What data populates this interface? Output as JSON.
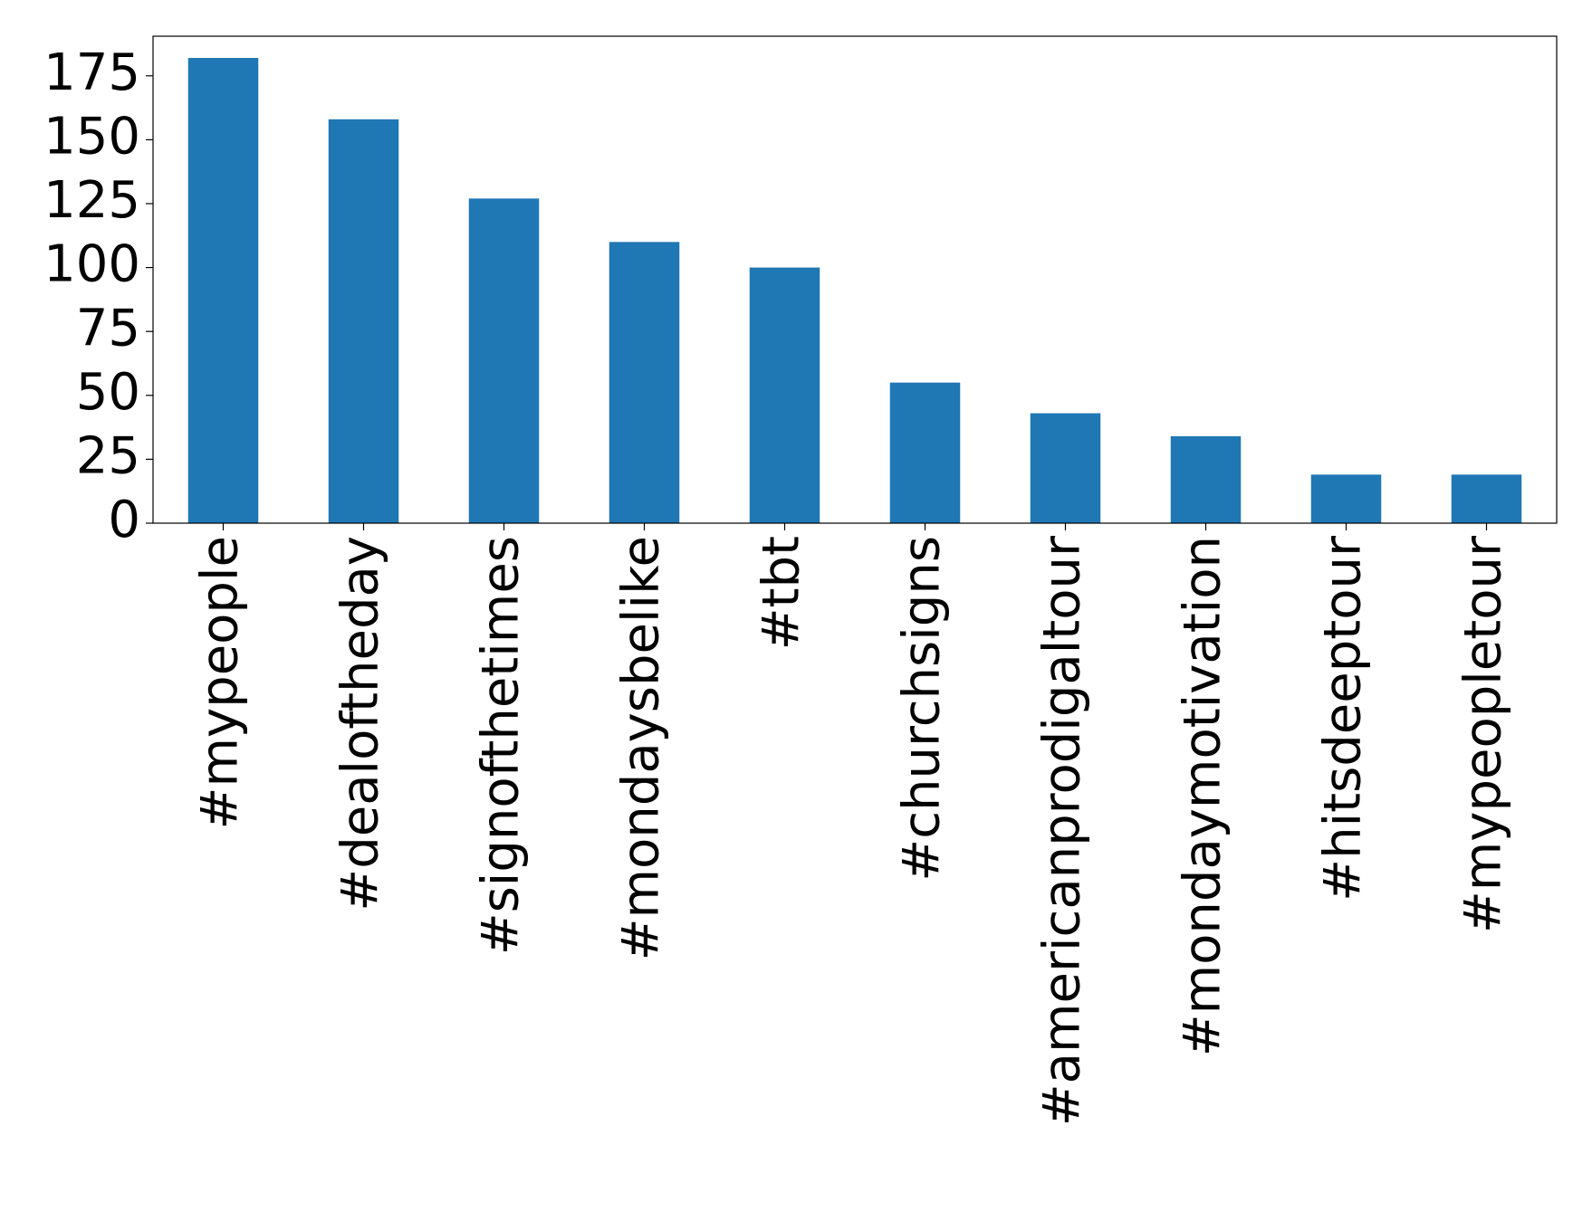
{
  "chart_data": {
    "type": "bar",
    "categories": [
      "#mypeople",
      "#dealoftheday",
      "#signofthetimes",
      "#mondaysbelike",
      "#tbt",
      "#churchsigns",
      "#americanprodigaltour",
      "#mondaymotivation",
      "#hitsdeeptour",
      "#mypeopletour"
    ],
    "values": [
      182,
      158,
      127,
      110,
      100,
      55,
      43,
      34,
      19,
      19
    ],
    "color": "#1f77b4",
    "ylim": [
      0,
      190.5
    ],
    "yticks": [
      0,
      25,
      50,
      75,
      100,
      125,
      150,
      175
    ],
    "grid": false
  }
}
